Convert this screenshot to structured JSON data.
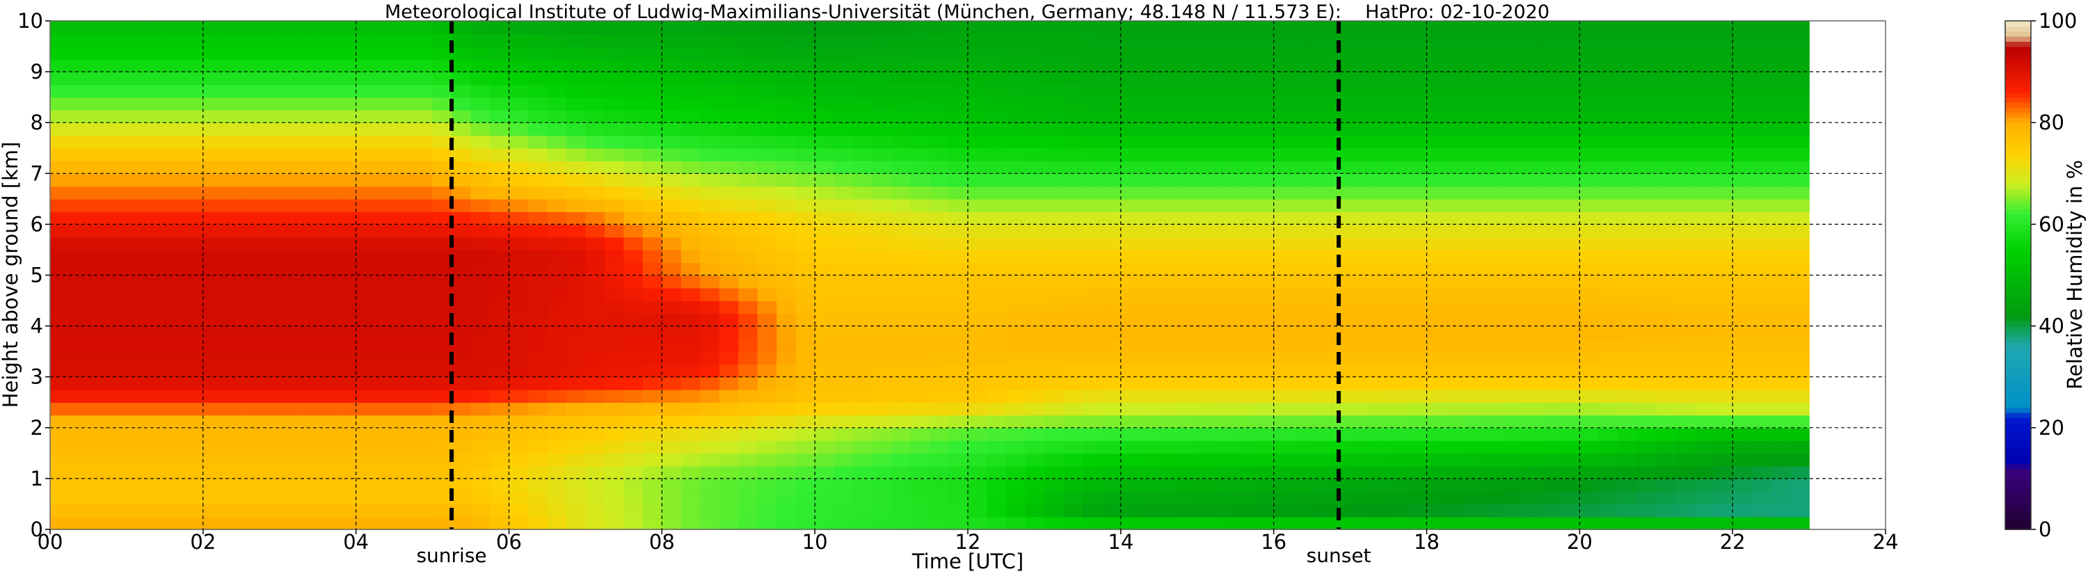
{
  "chart_data": {
    "type": "heatmap",
    "title": "Meteorological Institute of Ludwig-Maximilians-Universität (München, Germany; 48.148 N / 11.573 E):    HatPro: 02-10-2020",
    "xlabel": "Time [UTC]",
    "ylabel": "Height above ground [km]",
    "colorbar_label": "Relative Humidity in %",
    "xlim": [
      0,
      24
    ],
    "ylim": [
      0,
      10
    ],
    "clim": [
      0,
      100
    ],
    "x_ticks": [
      "00",
      "02",
      "04",
      "06",
      "08",
      "10",
      "12",
      "14",
      "16",
      "18",
      "20",
      "22",
      "24"
    ],
    "y_ticks": [
      "0",
      "1",
      "2",
      "3",
      "4",
      "5",
      "6",
      "7",
      "8",
      "9",
      "10"
    ],
    "colorbar_ticks": [
      "0",
      "20",
      "40",
      "60",
      "80",
      "100"
    ],
    "grid": true,
    "data_end_hour": 23,
    "events": [
      {
        "label": "sunrise",
        "hour": 5.25
      },
      {
        "label": "sunset",
        "hour": 16.85
      }
    ],
    "colormap": [
      {
        "value": 0,
        "color": "#200030"
      },
      {
        "value": 12,
        "color": "#3a0080"
      },
      {
        "value": 13,
        "color": "#0000b0"
      },
      {
        "value": 22,
        "color": "#0018d0"
      },
      {
        "value": 24,
        "color": "#0090c8"
      },
      {
        "value": 36,
        "color": "#20a8b0"
      },
      {
        "value": 42,
        "color": "#009a10"
      },
      {
        "value": 55,
        "color": "#00d000"
      },
      {
        "value": 62,
        "color": "#33ee33"
      },
      {
        "value": 68,
        "color": "#ccee22"
      },
      {
        "value": 74,
        "color": "#ffd000"
      },
      {
        "value": 80,
        "color": "#ffb000"
      },
      {
        "value": 86,
        "color": "#ff2000"
      },
      {
        "value": 95,
        "color": "#b80000"
      },
      {
        "value": 97,
        "color": "#e0c090"
      },
      {
        "value": 100,
        "color": "#f4e8c8"
      }
    ],
    "profiles": [
      {
        "hour": 0,
        "rh": [
          [
            0,
            88
          ],
          [
            0.1,
            80
          ],
          [
            0.6,
            76
          ],
          [
            2.2,
            79
          ],
          [
            2.5,
            86
          ],
          [
            3,
            91
          ],
          [
            5.5,
            92
          ],
          [
            6.2,
            86
          ],
          [
            7.2,
            78
          ],
          [
            8,
            68
          ],
          [
            9,
            58
          ],
          [
            10,
            50
          ]
        ]
      },
      {
        "hour": 5,
        "rh": [
          [
            0,
            88
          ],
          [
            0.1,
            80
          ],
          [
            0.6,
            76
          ],
          [
            2.2,
            79
          ],
          [
            2.5,
            86
          ],
          [
            3,
            91
          ],
          [
            5.5,
            92
          ],
          [
            6.2,
            86
          ],
          [
            7.2,
            78
          ],
          [
            8,
            68
          ],
          [
            9,
            58
          ],
          [
            10,
            50
          ]
        ]
      },
      {
        "hour": 5.5,
        "rh": [
          [
            0,
            88
          ],
          [
            0.1,
            79
          ],
          [
            0.8,
            75
          ],
          [
            2.2,
            79
          ],
          [
            2.6,
            86
          ],
          [
            3,
            91
          ],
          [
            5.5,
            92
          ],
          [
            6.2,
            85
          ],
          [
            7.2,
            74
          ],
          [
            8,
            64
          ],
          [
            9,
            55
          ],
          [
            10,
            46
          ]
        ]
      },
      {
        "hour": 7,
        "rh": [
          [
            0,
            86
          ],
          [
            0.1,
            70
          ],
          [
            1,
            69
          ],
          [
            2.2,
            77
          ],
          [
            3,
            89
          ],
          [
            5.5,
            90
          ],
          [
            6.2,
            82
          ],
          [
            7.2,
            68
          ],
          [
            8,
            58
          ],
          [
            9,
            52
          ],
          [
            10,
            44
          ]
        ]
      },
      {
        "hour": 8.5,
        "rh": [
          [
            0,
            84
          ],
          [
            0.1,
            64
          ],
          [
            1,
            64
          ],
          [
            2,
            72
          ],
          [
            2.5,
            80
          ],
          [
            3.2,
            88
          ],
          [
            4.2,
            90
          ],
          [
            5,
            81
          ],
          [
            6,
            77
          ],
          [
            7,
            66
          ],
          [
            8,
            56
          ],
          [
            9,
            50
          ],
          [
            10,
            44
          ]
        ]
      },
      {
        "hour": 10,
        "rh": [
          [
            0,
            84
          ],
          [
            0.1,
            61
          ],
          [
            1,
            62
          ],
          [
            2,
            68
          ],
          [
            2.5,
            76
          ],
          [
            3.5,
            78
          ],
          [
            5,
            76
          ],
          [
            6,
            73
          ],
          [
            7,
            64
          ],
          [
            8,
            54
          ],
          [
            9,
            48
          ],
          [
            10,
            42
          ]
        ]
      },
      {
        "hour": 12,
        "rh": [
          [
            0,
            84
          ],
          [
            0.1,
            59
          ],
          [
            1,
            58
          ],
          [
            2,
            64
          ],
          [
            2.5,
            75
          ],
          [
            3.5,
            78
          ],
          [
            5,
            76
          ],
          [
            6,
            70
          ],
          [
            7,
            60
          ],
          [
            8,
            52
          ],
          [
            9,
            48
          ],
          [
            10,
            44
          ]
        ]
      },
      {
        "hour": 13.7,
        "rh": [
          [
            0,
            60
          ],
          [
            0.3,
            44
          ],
          [
            0.8,
            48
          ],
          [
            1.5,
            56
          ],
          [
            2.2,
            66
          ],
          [
            3,
            76
          ],
          [
            4,
            79
          ],
          [
            5,
            76
          ],
          [
            6,
            70
          ],
          [
            7,
            60
          ],
          [
            8,
            50
          ],
          [
            9,
            46
          ],
          [
            10,
            44
          ]
        ]
      },
      {
        "hour": 20,
        "rh": [
          [
            0,
            60
          ],
          [
            0.3,
            40
          ],
          [
            0.9,
            42
          ],
          [
            1.5,
            52
          ],
          [
            2.2,
            64
          ],
          [
            3,
            76
          ],
          [
            4,
            79
          ],
          [
            5,
            76
          ],
          [
            6,
            70
          ],
          [
            7,
            60
          ],
          [
            8,
            50
          ],
          [
            9,
            46
          ],
          [
            10,
            44
          ]
        ]
      },
      {
        "hour": 22,
        "rh": [
          [
            0,
            60
          ],
          [
            0.3,
            38
          ],
          [
            1,
            40
          ],
          [
            1.8,
            48
          ],
          [
            2.2,
            66
          ],
          [
            3,
            76
          ],
          [
            4,
            78
          ],
          [
            5,
            76
          ],
          [
            6,
            70
          ],
          [
            7,
            60
          ],
          [
            8,
            50
          ],
          [
            9,
            46
          ],
          [
            10,
            44
          ]
        ]
      },
      {
        "hour": 23,
        "rh": [
          [
            0,
            60
          ],
          [
            0.3,
            38
          ],
          [
            1,
            38
          ],
          [
            1.8,
            48
          ],
          [
            2.2,
            66
          ],
          [
            3,
            76
          ],
          [
            4,
            78
          ],
          [
            5,
            76
          ],
          [
            6,
            70
          ],
          [
            7,
            60
          ],
          [
            8,
            50
          ],
          [
            9,
            46
          ],
          [
            10,
            44
          ]
        ]
      }
    ]
  }
}
